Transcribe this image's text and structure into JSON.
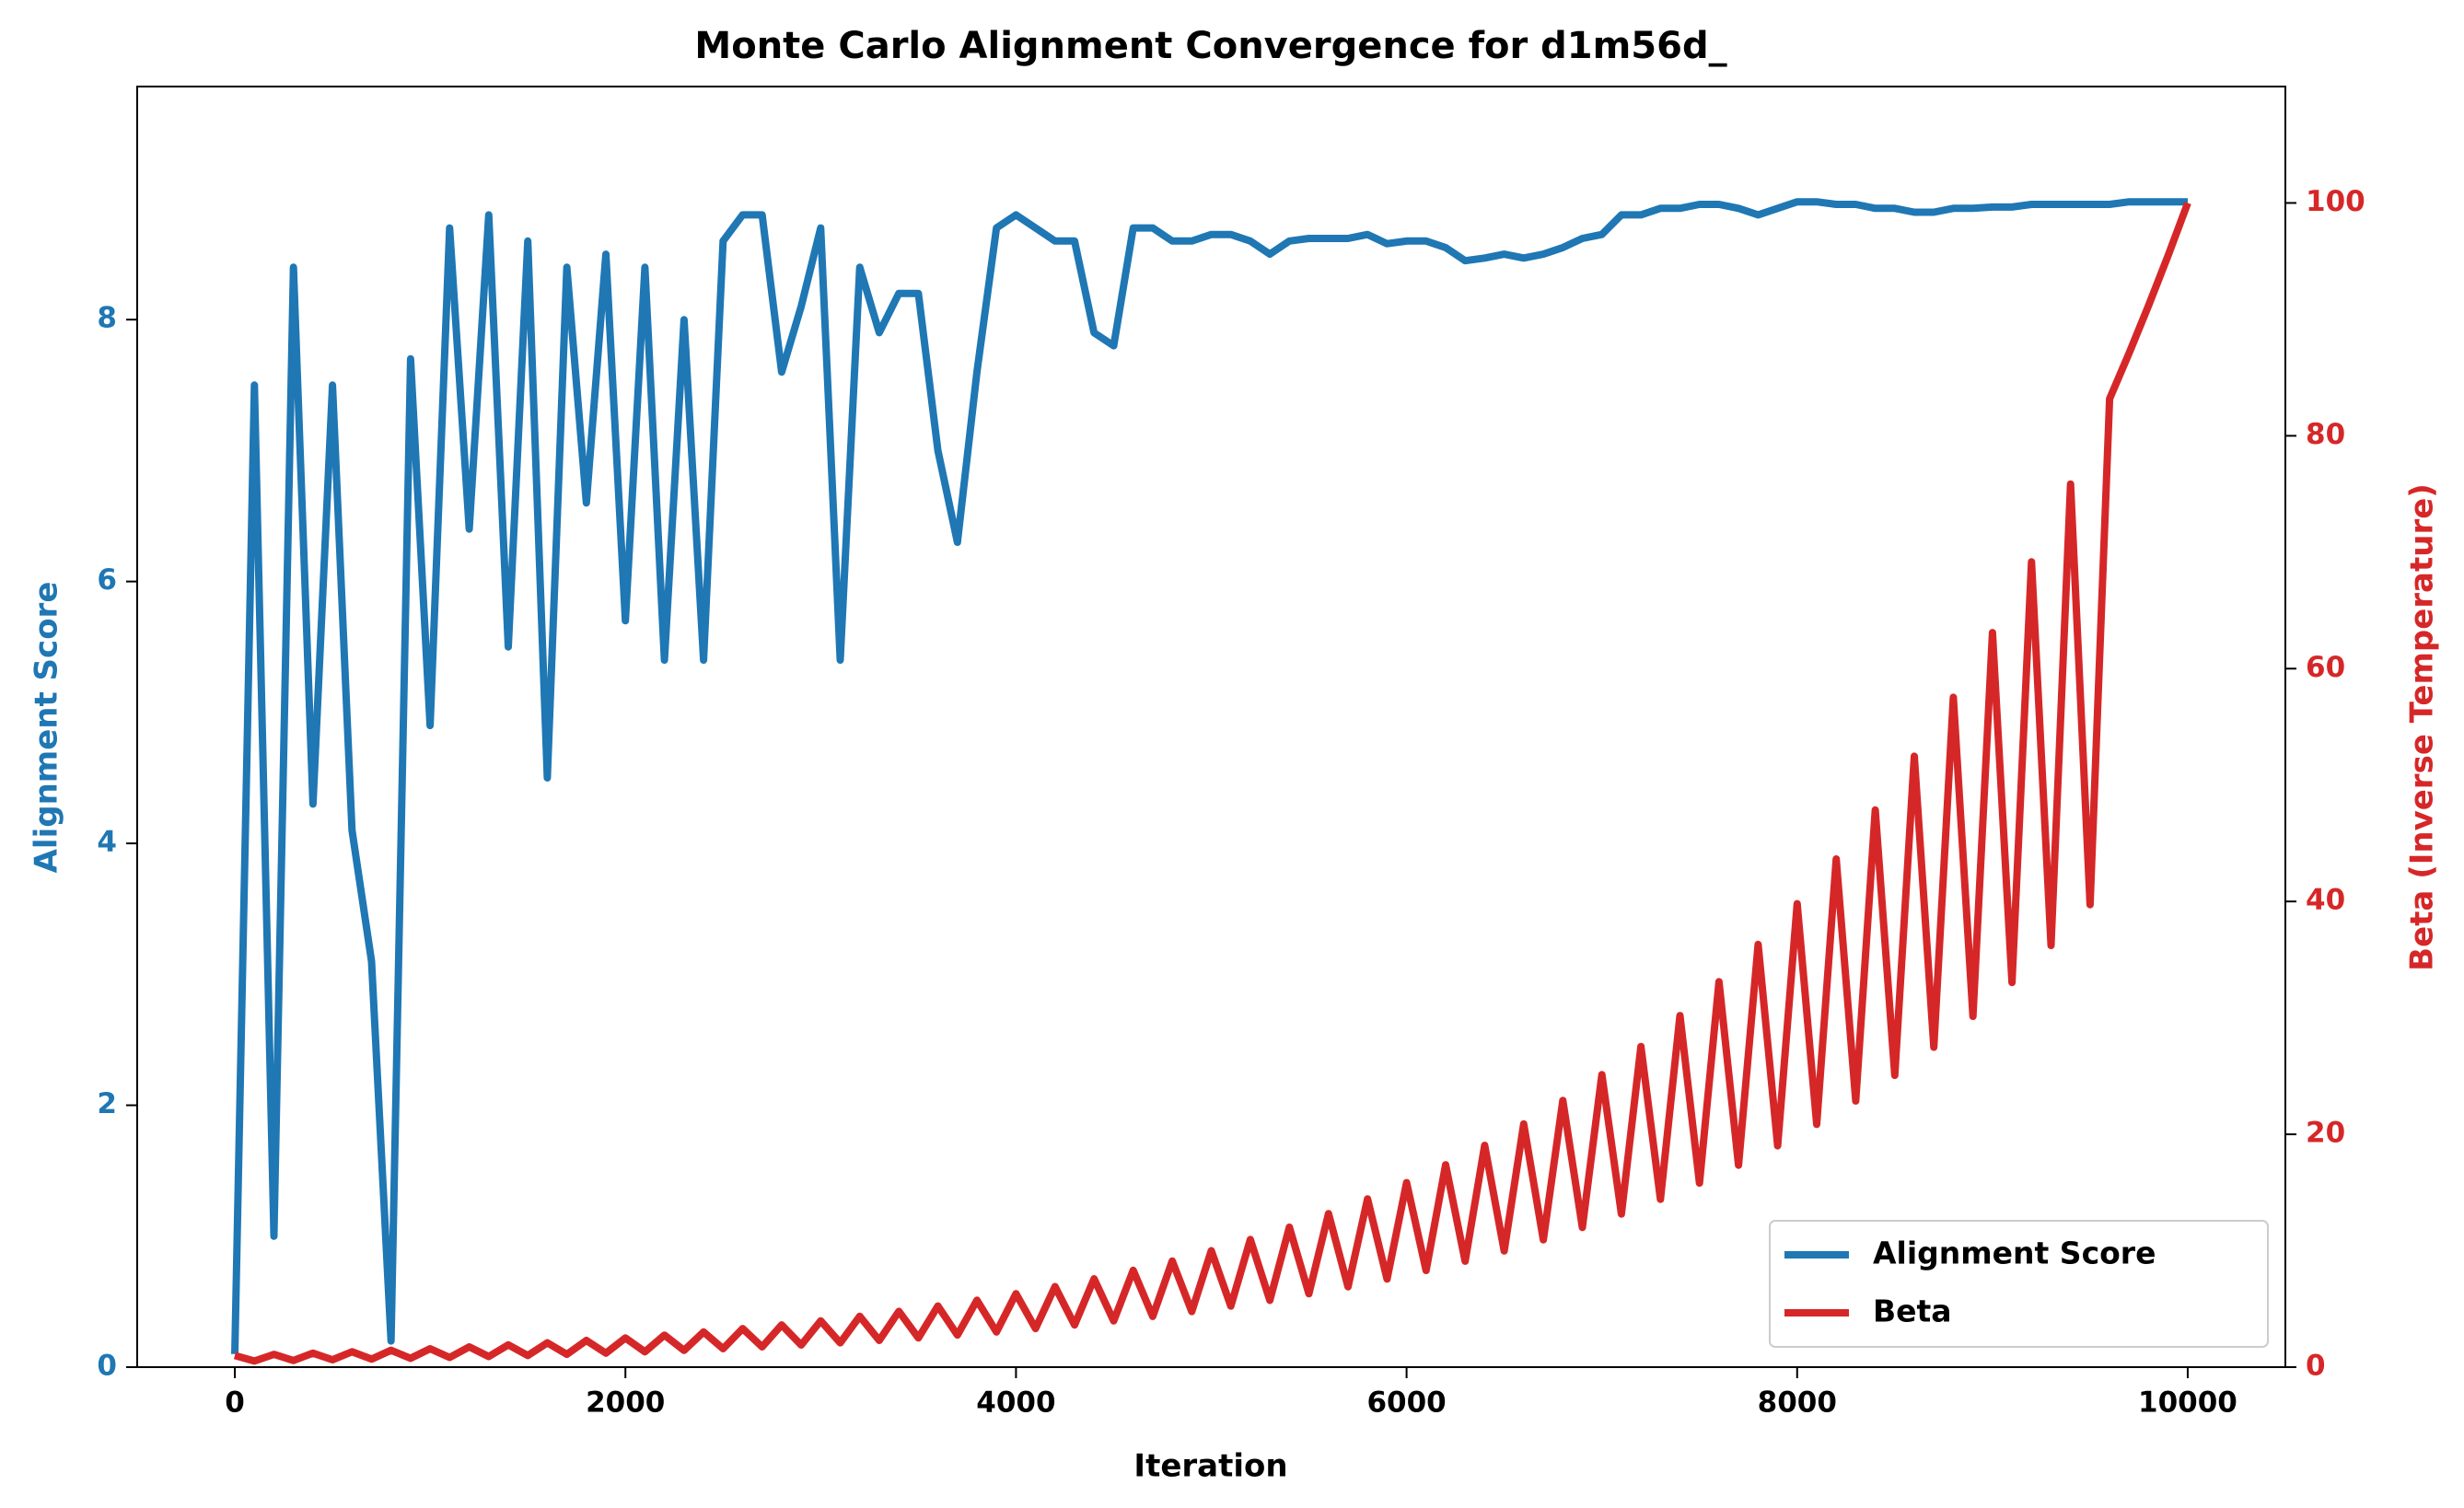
{
  "chart_data": {
    "type": "line",
    "title": "Monte Carlo Alignment Convergence for d1m56d_",
    "x_label": "Iteration",
    "y_label": "Alignment Score",
    "y2_label": "Beta (Inverse Temperature)",
    "x": [
      0,
      100,
      200,
      300,
      400,
      500,
      600,
      700,
      800,
      900,
      1000,
      1100,
      1200,
      1300,
      1400,
      1500,
      1600,
      1700,
      1800,
      1900,
      2000,
      2100,
      2200,
      2300,
      2400,
      2500,
      2600,
      2700,
      2800,
      2900,
      3000,
      3100,
      3200,
      3300,
      3400,
      3500,
      3600,
      3700,
      3800,
      3900,
      4000,
      4100,
      4200,
      4300,
      4400,
      4500,
      4600,
      4700,
      4800,
      4900,
      5000,
      5100,
      5200,
      5300,
      5400,
      5500,
      5600,
      5700,
      5800,
      5900,
      6000,
      6100,
      6200,
      6300,
      6400,
      6500,
      6600,
      6700,
      6800,
      6900,
      7000,
      7100,
      7200,
      7300,
      7400,
      7500,
      7600,
      7700,
      7800,
      7900,
      8000,
      8100,
      8200,
      8300,
      8400,
      8500,
      8600,
      8700,
      8800,
      8900,
      9000,
      9100,
      9200,
      9300,
      9400,
      9500,
      9600,
      9700,
      9800,
      9900,
      10000
    ],
    "series": [
      {
        "name": "Alignment Score",
        "color": "#1f77b4",
        "axis": "y",
        "values": [
          0.1,
          7.5,
          1.0,
          8.4,
          4.3,
          7.5,
          4.1,
          3.1,
          0.2,
          7.7,
          4.9,
          8.7,
          6.4,
          8.8,
          5.5,
          8.6,
          4.5,
          8.4,
          6.6,
          8.5,
          5.7,
          8.4,
          5.4,
          8.0,
          5.4,
          8.6,
          8.8,
          8.8,
          7.6,
          8.1,
          8.7,
          5.4,
          8.4,
          7.9,
          8.2,
          8.2,
          7.0,
          6.3,
          7.6,
          8.7,
          8.8,
          8.7,
          8.6,
          8.6,
          7.9,
          7.8,
          8.7,
          8.7,
          8.6,
          8.6,
          8.65,
          8.65,
          8.6,
          8.5,
          8.6,
          8.62,
          8.62,
          8.62,
          8.65,
          8.58,
          8.6,
          8.6,
          8.55,
          8.45,
          8.47,
          8.5,
          8.47,
          8.5,
          8.55,
          8.62,
          8.65,
          8.8,
          8.8,
          8.85,
          8.85,
          8.88,
          8.88,
          8.85,
          8.8,
          8.85,
          8.9,
          8.9,
          8.88,
          8.88,
          8.85,
          8.85,
          8.82,
          8.82,
          8.85,
          8.85,
          8.86,
          8.86,
          8.88,
          8.88,
          8.88,
          8.88,
          8.88,
          8.9,
          8.9,
          8.9,
          8.9
        ]
      },
      {
        "name": "Beta",
        "color": "#d62728",
        "axis": "y2",
        "values": [
          1.0,
          0.52,
          1.1,
          0.57,
          1.2,
          0.63,
          1.32,
          0.69,
          1.45,
          0.76,
          1.58,
          0.83,
          1.74,
          0.91,
          1.91,
          1.0,
          2.09,
          1.1,
          2.29,
          1.2,
          2.51,
          1.32,
          2.75,
          1.44,
          3.02,
          1.58,
          3.31,
          1.74,
          3.63,
          1.9,
          3.98,
          2.09,
          4.37,
          2.29,
          4.79,
          2.51,
          5.25,
          2.75,
          5.75,
          3.02,
          6.31,
          3.31,
          6.92,
          3.62,
          7.59,
          3.97,
          8.32,
          4.36,
          9.12,
          4.78,
          10.0,
          5.24,
          10.96,
          5.74,
          12.02,
          6.3,
          13.18,
          6.9,
          14.45,
          7.57,
          15.85,
          8.3,
          17.38,
          9.1,
          19.05,
          9.98,
          20.89,
          10.94,
          22.91,
          12.0,
          25.12,
          13.15,
          27.54,
          14.42,
          30.2,
          15.81,
          33.11,
          17.34,
          36.31,
          19.01,
          39.81,
          20.85,
          43.65,
          22.86,
          47.86,
          25.06,
          52.48,
          27.48,
          57.54,
          30.13,
          63.1,
          33.04,
          69.18,
          36.22,
          75.86,
          39.72,
          83.18,
          87.1,
          91.2,
          95.5,
          100
        ]
      }
    ],
    "xlim": [
      -500,
      10500
    ],
    "ylim": [
      0,
      9.78
    ],
    "y2lim": [
      0,
      110
    ],
    "xticks": [
      0,
      2000,
      4000,
      6000,
      8000,
      10000
    ],
    "yticks": [
      0,
      2,
      4,
      6,
      8
    ],
    "y2ticks": [
      0,
      20,
      40,
      60,
      80,
      100
    ],
    "legend": "lower right",
    "grid": false
  }
}
